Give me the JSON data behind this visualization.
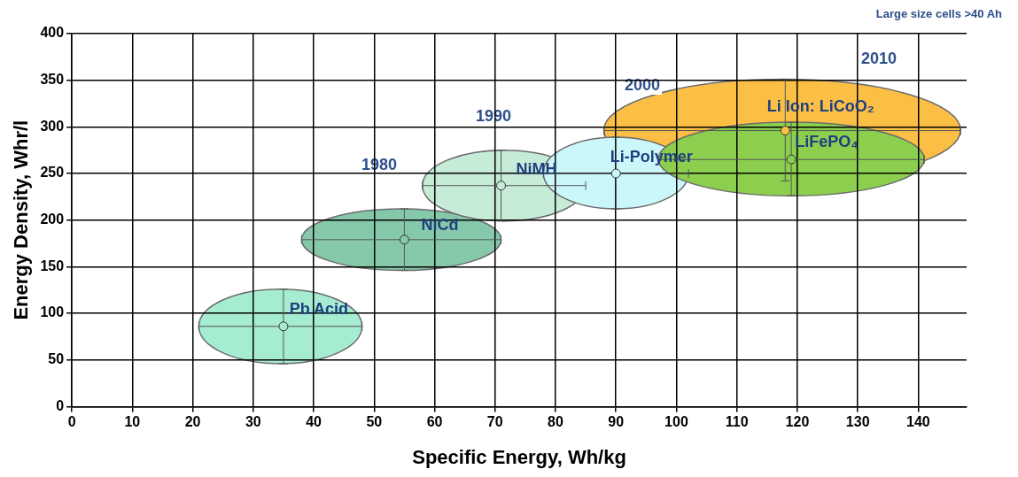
{
  "chart_data": {
    "type": "scatter",
    "xlabel": "Specific Energy, Wh/kg",
    "ylabel": "Energy Density, Whr/l",
    "xlim": [
      0,
      148
    ],
    "xticks": [
      0,
      10,
      20,
      30,
      40,
      50,
      60,
      70,
      80,
      90,
      100,
      110,
      120,
      130,
      140
    ],
    "ylim": [
      0,
      400
    ],
    "yticks": [
      0,
      50,
      100,
      150,
      200,
      250,
      300,
      350,
      400
    ],
    "grid": true,
    "legend": false,
    "series": [
      {
        "name": "Pb Acid",
        "color": "#a6ecd0",
        "x": [
          35
        ],
        "values": [
          86
        ],
        "xerrors": [
          [
            21,
            48
          ]
        ],
        "errors": [
          [
            46,
            126
          ]
        ]
      },
      {
        "name": "NiCd",
        "color": "#86c8aa",
        "x": [
          55
        ],
        "values": [
          179
        ],
        "xerrors": [
          [
            38,
            71
          ]
        ],
        "errors": [
          [
            146,
            212
          ]
        ]
      },
      {
        "name": "NiMH",
        "color": "#c6ecd8",
        "x": [
          71
        ],
        "values": [
          237
        ],
        "xerrors": [
          [
            58,
            85
          ]
        ],
        "errors": [
          [
            199,
            275
          ]
        ]
      },
      {
        "name": "Li Ion: LiCoO₂",
        "color": "#fcbf45",
        "x": [
          118
        ],
        "values": [
          296
        ],
        "xerrors": [
          [
            88,
            147
          ]
        ],
        "errors": [
          [
            242,
            351
          ]
        ]
      },
      {
        "name": "Li-Polymer",
        "color": "#cbf7fb",
        "x": [
          90
        ],
        "values": [
          250
        ],
        "xerrors": [
          [
            78,
            102
          ]
        ],
        "errors": [
          [
            212,
            289
          ]
        ]
      },
      {
        "name": "LiFePO₄",
        "color": "#8ccf4e",
        "x": [
          119
        ],
        "values": [
          265
        ],
        "xerrors": [
          [
            97,
            141
          ]
        ],
        "errors": [
          [
            226,
            305
          ]
        ]
      }
    ],
    "annotations": [
      "1980",
      "1990",
      "2000",
      "2010",
      "Large size  cells  >40 Ah"
    ]
  }
}
